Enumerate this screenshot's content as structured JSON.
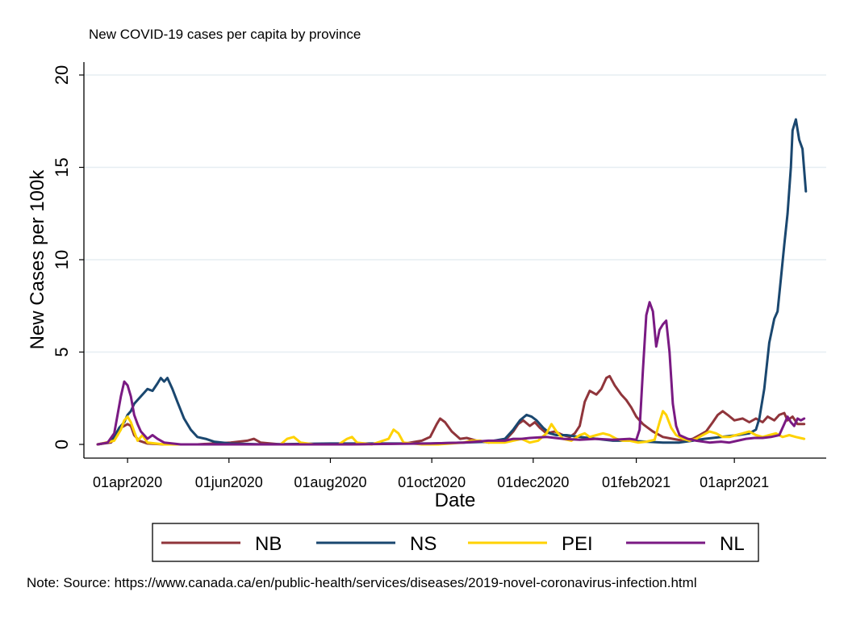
{
  "chart_data": {
    "type": "line",
    "title": "New COVID-19 cases per capita by province",
    "xlabel": "Date",
    "ylabel": "New Cases per 100k",
    "ylim": [
      0,
      20
    ],
    "yticks": [
      0,
      5,
      10,
      15,
      20
    ],
    "ytick_labels": [
      "0",
      "5",
      "10",
      "15",
      "20"
    ],
    "xlim_days": [
      0,
      430
    ],
    "xticks": [
      {
        "day": 18,
        "label": "01apr2020"
      },
      {
        "day": 79,
        "label": "01jun2020"
      },
      {
        "day": 140,
        "label": "01aug2020"
      },
      {
        "day": 201,
        "label": "01oct2020"
      },
      {
        "day": 262,
        "label": "01dec2020"
      },
      {
        "day": 324,
        "label": "01feb2021"
      },
      {
        "day": 383,
        "label": "01apr2021"
      }
    ],
    "grid": true,
    "legend_position": "bottom",
    "note": "Note: Source: https://www.canada.ca/en/public-health/services/diseases/2019-novel-coronavirus-infection.html",
    "series": [
      {
        "name": "NB",
        "color": "#90353b",
        "points": [
          [
            0,
            0
          ],
          [
            8,
            0.1
          ],
          [
            12,
            0.5
          ],
          [
            14,
            0.9
          ],
          [
            16,
            1.0
          ],
          [
            18,
            1.1
          ],
          [
            20,
            1.0
          ],
          [
            22,
            0.5
          ],
          [
            25,
            0.2
          ],
          [
            30,
            0.05
          ],
          [
            40,
            0
          ],
          [
            60,
            0
          ],
          [
            80,
            0.1
          ],
          [
            90,
            0.2
          ],
          [
            94,
            0.3
          ],
          [
            98,
            0.1
          ],
          [
            110,
            0
          ],
          [
            150,
            0
          ],
          [
            185,
            0.05
          ],
          [
            195,
            0.2
          ],
          [
            200,
            0.4
          ],
          [
            204,
            1.1
          ],
          [
            206,
            1.4
          ],
          [
            209,
            1.2
          ],
          [
            213,
            0.7
          ],
          [
            218,
            0.3
          ],
          [
            222,
            0.35
          ],
          [
            228,
            0.2
          ],
          [
            235,
            0.1
          ],
          [
            245,
            0.2
          ],
          [
            250,
            0.7
          ],
          [
            253,
            1.1
          ],
          [
            256,
            1.3
          ],
          [
            260,
            1.0
          ],
          [
            263,
            1.2
          ],
          [
            266,
            0.9
          ],
          [
            270,
            0.6
          ],
          [
            275,
            0.7
          ],
          [
            280,
            0.5
          ],
          [
            284,
            0.4
          ],
          [
            287,
            0.6
          ],
          [
            290,
            1.0
          ],
          [
            293,
            2.3
          ],
          [
            296,
            2.9
          ],
          [
            300,
            2.7
          ],
          [
            303,
            3.0
          ],
          [
            306,
            3.6
          ],
          [
            308,
            3.7
          ],
          [
            311,
            3.2
          ],
          [
            315,
            2.7
          ],
          [
            318,
            2.4
          ],
          [
            321,
            2.0
          ],
          [
            324,
            1.5
          ],
          [
            328,
            1.1
          ],
          [
            331,
            0.9
          ],
          [
            334,
            0.7
          ],
          [
            340,
            0.4
          ],
          [
            346,
            0.3
          ],
          [
            352,
            0.2
          ],
          [
            358,
            0.3
          ],
          [
            362,
            0.5
          ],
          [
            366,
            0.7
          ],
          [
            370,
            1.2
          ],
          [
            373,
            1.6
          ],
          [
            376,
            1.8
          ],
          [
            379,
            1.6
          ],
          [
            383,
            1.3
          ],
          [
            388,
            1.4
          ],
          [
            392,
            1.2
          ],
          [
            396,
            1.4
          ],
          [
            400,
            1.2
          ],
          [
            403,
            1.5
          ],
          [
            407,
            1.3
          ],
          [
            410,
            1.6
          ],
          [
            413,
            1.7
          ],
          [
            415,
            1.3
          ],
          [
            418,
            1.5
          ],
          [
            421,
            1.1
          ],
          [
            425,
            1.1
          ]
        ]
      },
      {
        "name": "NS",
        "color": "#1a476f",
        "points": [
          [
            0,
            0
          ],
          [
            6,
            0.1
          ],
          [
            10,
            0.4
          ],
          [
            13,
            0.9
          ],
          [
            16,
            1.2
          ],
          [
            18,
            1.6
          ],
          [
            20,
            1.8
          ],
          [
            22,
            2.2
          ],
          [
            25,
            2.5
          ],
          [
            28,
            2.8
          ],
          [
            30,
            3.0
          ],
          [
            33,
            2.9
          ],
          [
            36,
            3.3
          ],
          [
            38,
            3.6
          ],
          [
            40,
            3.4
          ],
          [
            42,
            3.6
          ],
          [
            45,
            3.0
          ],
          [
            48,
            2.3
          ],
          [
            52,
            1.4
          ],
          [
            56,
            0.8
          ],
          [
            60,
            0.4
          ],
          [
            65,
            0.3
          ],
          [
            70,
            0.15
          ],
          [
            80,
            0.05
          ],
          [
            100,
            0
          ],
          [
            140,
            0.05
          ],
          [
            170,
            0.05
          ],
          [
            200,
            0.05
          ],
          [
            220,
            0.1
          ],
          [
            235,
            0.15
          ],
          [
            245,
            0.3
          ],
          [
            250,
            0.8
          ],
          [
            254,
            1.3
          ],
          [
            258,
            1.6
          ],
          [
            261,
            1.5
          ],
          [
            264,
            1.3
          ],
          [
            268,
            0.9
          ],
          [
            272,
            0.6
          ],
          [
            276,
            0.5
          ],
          [
            282,
            0.5
          ],
          [
            290,
            0.4
          ],
          [
            300,
            0.3
          ],
          [
            310,
            0.2
          ],
          [
            320,
            0.2
          ],
          [
            330,
            0.15
          ],
          [
            340,
            0.1
          ],
          [
            350,
            0.1
          ],
          [
            358,
            0.2
          ],
          [
            365,
            0.3
          ],
          [
            375,
            0.4
          ],
          [
            385,
            0.5
          ],
          [
            392,
            0.6
          ],
          [
            396,
            0.8
          ],
          [
            398,
            1.4
          ],
          [
            401,
            3.0
          ],
          [
            404,
            5.5
          ],
          [
            407,
            6.8
          ],
          [
            409,
            7.2
          ],
          [
            411,
            9.0
          ],
          [
            413,
            10.8
          ],
          [
            415,
            12.5
          ],
          [
            417,
            15.0
          ],
          [
            418,
            17.0
          ],
          [
            420,
            17.6
          ],
          [
            422,
            16.5
          ],
          [
            424,
            16.0
          ],
          [
            426,
            13.7
          ]
        ]
      },
      {
        "name": "PEI",
        "color": "#ffd200",
        "points": [
          [
            0,
            0
          ],
          [
            10,
            0.2
          ],
          [
            14,
            0.8
          ],
          [
            16,
            1.3
          ],
          [
            18,
            1.5
          ],
          [
            20,
            1.2
          ],
          [
            22,
            0.7
          ],
          [
            24,
            0.2
          ],
          [
            27,
            0.5
          ],
          [
            30,
            0.1
          ],
          [
            40,
            0
          ],
          [
            60,
            0
          ],
          [
            80,
            0
          ],
          [
            110,
            0
          ],
          [
            114,
            0.3
          ],
          [
            118,
            0.4
          ],
          [
            122,
            0.1
          ],
          [
            130,
            0
          ],
          [
            145,
            0
          ],
          [
            150,
            0.3
          ],
          [
            153,
            0.4
          ],
          [
            156,
            0.1
          ],
          [
            165,
            0
          ],
          [
            175,
            0.3
          ],
          [
            178,
            0.8
          ],
          [
            181,
            0.6
          ],
          [
            184,
            0.1
          ],
          [
            195,
            0
          ],
          [
            205,
            0
          ],
          [
            220,
            0.1
          ],
          [
            225,
            0.2
          ],
          [
            230,
            0.2
          ],
          [
            235,
            0.1
          ],
          [
            245,
            0.1
          ],
          [
            250,
            0.2
          ],
          [
            255,
            0.3
          ],
          [
            260,
            0.1
          ],
          [
            265,
            0.2
          ],
          [
            270,
            0.6
          ],
          [
            273,
            1.1
          ],
          [
            276,
            0.7
          ],
          [
            280,
            0.3
          ],
          [
            285,
            0.2
          ],
          [
            290,
            0.5
          ],
          [
            293,
            0.6
          ],
          [
            296,
            0.4
          ],
          [
            300,
            0.5
          ],
          [
            304,
            0.6
          ],
          [
            308,
            0.5
          ],
          [
            312,
            0.3
          ],
          [
            316,
            0.2
          ],
          [
            320,
            0.2
          ],
          [
            325,
            0.1
          ],
          [
            330,
            0.15
          ],
          [
            335,
            0.25
          ],
          [
            338,
            1.2
          ],
          [
            340,
            1.8
          ],
          [
            342,
            1.6
          ],
          [
            345,
            0.9
          ],
          [
            348,
            0.5
          ],
          [
            352,
            0.3
          ],
          [
            356,
            0.2
          ],
          [
            360,
            0.3
          ],
          [
            364,
            0.5
          ],
          [
            368,
            0.7
          ],
          [
            372,
            0.6
          ],
          [
            376,
            0.4
          ],
          [
            380,
            0.4
          ],
          [
            384,
            0.5
          ],
          [
            388,
            0.6
          ],
          [
            392,
            0.7
          ],
          [
            396,
            0.5
          ],
          [
            400,
            0.4
          ],
          [
            404,
            0.5
          ],
          [
            408,
            0.6
          ],
          [
            412,
            0.4
          ],
          [
            416,
            0.5
          ],
          [
            420,
            0.4
          ],
          [
            425,
            0.3
          ]
        ]
      },
      {
        "name": "NL",
        "color": "#7a1a83",
        "points": [
          [
            0,
            0
          ],
          [
            6,
            0.1
          ],
          [
            10,
            0.6
          ],
          [
            12,
            1.6
          ],
          [
            14,
            2.6
          ],
          [
            16,
            3.4
          ],
          [
            18,
            3.2
          ],
          [
            20,
            2.6
          ],
          [
            22,
            1.6
          ],
          [
            24,
            1.1
          ],
          [
            26,
            0.7
          ],
          [
            28,
            0.5
          ],
          [
            30,
            0.3
          ],
          [
            33,
            0.5
          ],
          [
            36,
            0.3
          ],
          [
            40,
            0.1
          ],
          [
            50,
            0
          ],
          [
            100,
            0
          ],
          [
            150,
            0
          ],
          [
            200,
            0.05
          ],
          [
            220,
            0.1
          ],
          [
            235,
            0.2
          ],
          [
            245,
            0.2
          ],
          [
            250,
            0.3
          ],
          [
            255,
            0.3
          ],
          [
            260,
            0.35
          ],
          [
            270,
            0.4
          ],
          [
            280,
            0.3
          ],
          [
            290,
            0.25
          ],
          [
            300,
            0.3
          ],
          [
            310,
            0.25
          ],
          [
            320,
            0.3
          ],
          [
            324,
            0.25
          ],
          [
            326,
            0.8
          ],
          [
            328,
            4.0
          ],
          [
            330,
            7.0
          ],
          [
            332,
            7.7
          ],
          [
            334,
            7.2
          ],
          [
            336,
            5.3
          ],
          [
            338,
            6.2
          ],
          [
            340,
            6.5
          ],
          [
            342,
            6.7
          ],
          [
            344,
            5.0
          ],
          [
            346,
            2.2
          ],
          [
            348,
            1.0
          ],
          [
            350,
            0.5
          ],
          [
            355,
            0.3
          ],
          [
            360,
            0.2
          ],
          [
            368,
            0.1
          ],
          [
            375,
            0.15
          ],
          [
            380,
            0.1
          ],
          [
            385,
            0.2
          ],
          [
            390,
            0.3
          ],
          [
            395,
            0.35
          ],
          [
            400,
            0.35
          ],
          [
            405,
            0.4
          ],
          [
            410,
            0.5
          ],
          [
            413,
            1.1
          ],
          [
            415,
            1.5
          ],
          [
            417,
            1.2
          ],
          [
            419,
            1.0
          ],
          [
            421,
            1.4
          ],
          [
            423,
            1.3
          ],
          [
            425,
            1.4
          ]
        ]
      }
    ]
  }
}
